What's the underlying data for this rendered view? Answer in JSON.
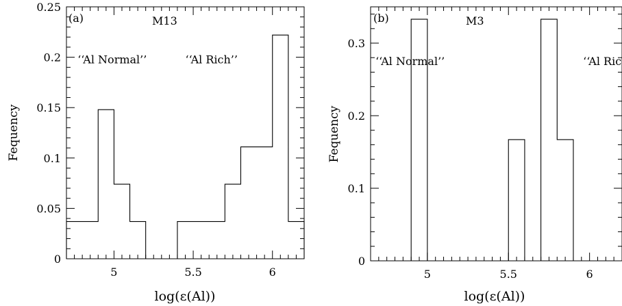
{
  "chart_data": [
    {
      "type": "bar",
      "panel_label": "(a)",
      "title": "M13",
      "xlabel": "log(ε(Al))",
      "ylabel": "Fequency",
      "xlim": [
        4.7,
        6.2
      ],
      "ylim": [
        0,
        0.25
      ],
      "xticks": [
        5,
        5.5,
        6
      ],
      "xtick_labels": [
        "5",
        "5.5",
        "6"
      ],
      "yticks": [
        0,
        0.05,
        0.1,
        0.15,
        0.2,
        0.25
      ],
      "ytick_labels": [
        "0",
        "0.05",
        "0.1",
        "0.15",
        "0.2",
        "0.25"
      ],
      "bin_width": 0.1,
      "bins": [
        {
          "x0": 4.7,
          "x1": 4.8,
          "value": 0.037
        },
        {
          "x0": 4.8,
          "x1": 4.9,
          "value": 0.037
        },
        {
          "x0": 4.9,
          "x1": 5.0,
          "value": 0.148
        },
        {
          "x0": 5.0,
          "x1": 5.1,
          "value": 0.074
        },
        {
          "x0": 5.1,
          "x1": 5.2,
          "value": 0.037
        },
        {
          "x0": 5.2,
          "x1": 5.3,
          "value": 0
        },
        {
          "x0": 5.3,
          "x1": 5.4,
          "value": 0
        },
        {
          "x0": 5.4,
          "x1": 5.5,
          "value": 0.037
        },
        {
          "x0": 5.5,
          "x1": 5.6,
          "value": 0.037
        },
        {
          "x0": 5.6,
          "x1": 5.7,
          "value": 0.037
        },
        {
          "x0": 5.7,
          "x1": 5.8,
          "value": 0.074
        },
        {
          "x0": 5.8,
          "x1": 5.9,
          "value": 0.111
        },
        {
          "x0": 5.9,
          "x1": 6.0,
          "value": 0.111
        },
        {
          "x0": 6.0,
          "x1": 6.1,
          "value": 0.222
        },
        {
          "x0": 6.1,
          "x1": 6.2,
          "value": 0.037
        }
      ],
      "annotations": [
        {
          "text": "‘‘Al Normal’’",
          "x": 4.77,
          "y": 0.194
        },
        {
          "text": "‘‘Al Rich’’",
          "x": 5.45,
          "y": 0.194
        }
      ],
      "grid": false
    },
    {
      "type": "bar",
      "panel_label": "(b)",
      "title": "M3",
      "xlabel": "log(ε(Al))",
      "ylabel": "Fequency",
      "xlim": [
        4.65,
        6.2
      ],
      "ylim": [
        0,
        0.35
      ],
      "xticks": [
        5,
        5.5,
        6
      ],
      "xtick_labels": [
        "5",
        "5.5",
        "6"
      ],
      "yticks": [
        0,
        0.1,
        0.2,
        0.3
      ],
      "ytick_labels": [
        "0",
        "0.1",
        "0.2",
        "0.3"
      ],
      "bin_width": 0.1,
      "bins": [
        {
          "x0": 4.9,
          "x1": 5.0,
          "value": 0.333
        },
        {
          "x0": 5.5,
          "x1": 5.6,
          "value": 0.167
        },
        {
          "x0": 5.7,
          "x1": 5.8,
          "value": 0.333
        },
        {
          "x0": 5.8,
          "x1": 5.9,
          "value": 0.167
        }
      ],
      "annotations": [
        {
          "text": "‘‘Al Normal’’",
          "x": 4.68,
          "y": 0.27
        },
        {
          "text": "‘‘Al Rich’’",
          "x": 5.96,
          "y": 0.27
        }
      ],
      "grid": false
    }
  ]
}
